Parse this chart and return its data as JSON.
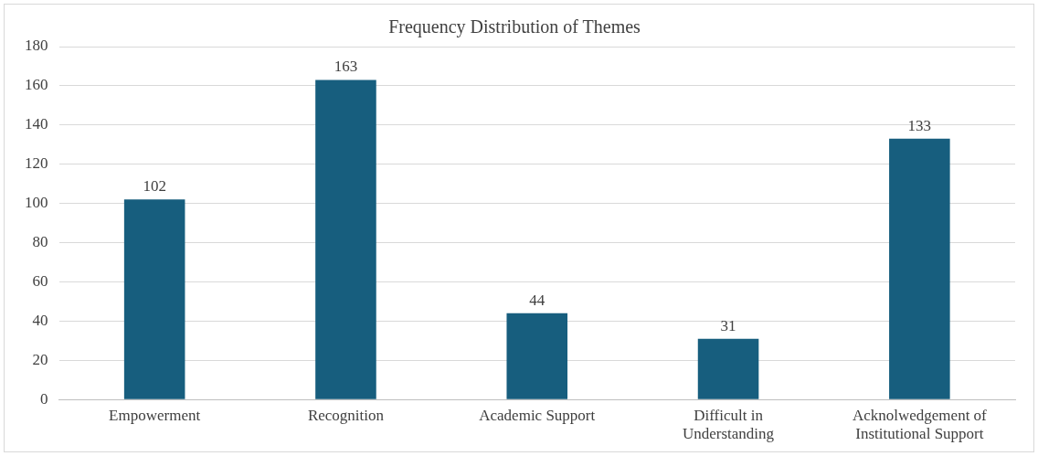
{
  "chart_data": {
    "type": "bar",
    "title": "Frequency Distribution of Themes",
    "categories": [
      "Empowerment",
      "Recognition",
      "Academic Support",
      "Difficult in Understanding",
      "Acknolwedgement of Institutional Support"
    ],
    "values": [
      102,
      163,
      44,
      31,
      133
    ],
    "color": "#175e7e",
    "ylim": [
      0,
      180
    ],
    "yticks": [
      0,
      20,
      40,
      60,
      80,
      100,
      120,
      140,
      160,
      180
    ],
    "grid": "y",
    "data_labels": true
  }
}
